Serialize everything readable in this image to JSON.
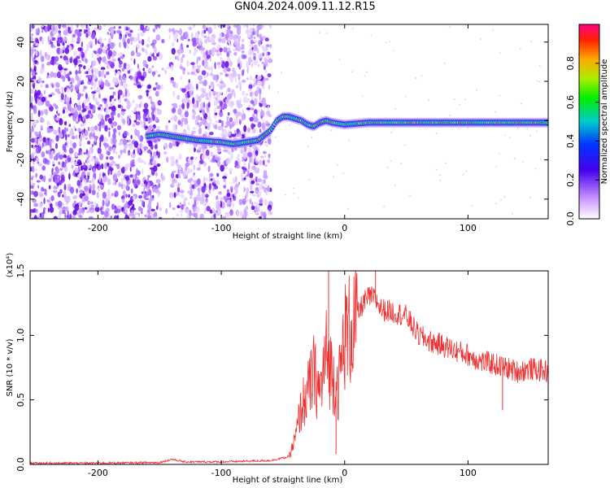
{
  "page_title": "GN04.2024.009.11.12.R15",
  "chart_data": [
    {
      "type": "heatmap",
      "xlabel": "Height of straight line (km)",
      "ylabel": "Frequency (Hz)",
      "xlim": [
        -255,
        165
      ],
      "ylim": [
        -50,
        49
      ],
      "xticks": [
        -200,
        -100,
        0,
        100
      ],
      "yticks": [
        -40,
        -20,
        0,
        20,
        40
      ],
      "colorbar": {
        "label": "Normalized spectral amplitude",
        "range": [
          0.0,
          1.0
        ],
        "ticks": [
          "0.0",
          "0.2",
          "0.4",
          "0.6",
          "0.8"
        ]
      },
      "ridge": {
        "x": [
          -160,
          -150,
          -140,
          -120,
          -100,
          -90,
          -80,
          -70,
          -60,
          -55,
          -50,
          -45,
          -40,
          -35,
          -30,
          -25,
          -20,
          -15,
          -10,
          0,
          20,
          40,
          60,
          80,
          100,
          120,
          140,
          165
        ],
        "y": [
          -8,
          -7,
          -8,
          -10,
          -11,
          -12,
          -11,
          -10,
          -5,
          0,
          2,
          2,
          1,
          0,
          -2,
          -3,
          -1,
          0,
          -1,
          -2,
          -1,
          -1,
          -1,
          -1,
          -1,
          -1,
          -1,
          -1
        ]
      },
      "noise_region": [
        -255,
        -60
      ],
      "gap_region": [
        -150,
        -140
      ]
    },
    {
      "type": "line",
      "xlabel": "Height of straight line (km)",
      "ylabel": "SNR (10 * v/v)",
      "y_multiplier": "(x10⁴)",
      "xlim": [
        -255,
        165
      ],
      "ylim": [
        0.0,
        1.5
      ],
      "xticks": [
        -200,
        -100,
        0,
        100
      ],
      "yticks": [
        "0.0",
        "0.5",
        "1.0",
        "1.5"
      ],
      "series": [
        {
          "color": "#ee3333",
          "x": [
            -255,
            -200,
            -150,
            -140,
            -130,
            -100,
            -60,
            -45,
            -40,
            -35,
            -30,
            -25,
            -20,
            -15,
            -10,
            -5,
            0,
            5,
            10,
            15,
            20,
            25,
            30,
            40,
            50,
            60,
            70,
            80,
            90,
            100,
            110,
            120,
            130,
            140,
            150,
            165
          ],
          "y": [
            0.01,
            0.01,
            0.015,
            0.04,
            0.02,
            0.02,
            0.03,
            0.06,
            0.2,
            0.45,
            0.55,
            0.7,
            0.55,
            0.85,
            0.7,
            0.6,
            1.0,
            1.05,
            1.15,
            1.25,
            1.3,
            1.28,
            1.2,
            1.18,
            1.15,
            1.0,
            0.95,
            0.92,
            0.88,
            0.85,
            0.8,
            0.78,
            0.75,
            0.72,
            0.74,
            0.72
          ],
          "spikes": [
            {
              "x": -13,
              "y": 1.5
            },
            {
              "x": -7,
              "y": 0.08
            },
            {
              "x": 25,
              "y": 1.5
            },
            {
              "x": 128,
              "y": 0.42
            }
          ]
        }
      ]
    }
  ]
}
